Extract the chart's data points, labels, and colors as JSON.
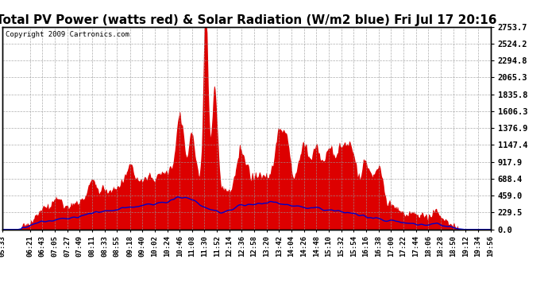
{
  "title": "Total PV Power (watts red) & Solar Radiation (W/m2 blue) Fri Jul 17 20:16",
  "copyright": "Copyright 2009 Cartronics.com",
  "yticks": [
    0.0,
    229.5,
    459.0,
    688.4,
    917.9,
    1147.4,
    1376.9,
    1606.3,
    1835.8,
    2065.3,
    2294.8,
    2524.2,
    2753.7
  ],
  "ymax": 2753.7,
  "ymin": 0.0,
  "xtick_labels": [
    "05:33",
    "06:21",
    "06:43",
    "07:05",
    "07:27",
    "07:49",
    "08:11",
    "08:33",
    "08:55",
    "09:18",
    "09:40",
    "10:02",
    "10:24",
    "10:46",
    "11:08",
    "11:30",
    "11:52",
    "12:14",
    "12:36",
    "12:58",
    "13:20",
    "13:42",
    "14:04",
    "14:26",
    "14:48",
    "15:10",
    "15:32",
    "15:54",
    "16:16",
    "16:38",
    "17:00",
    "17:22",
    "17:44",
    "18:06",
    "18:28",
    "18:50",
    "19:12",
    "19:34",
    "19:56"
  ],
  "pv_color": "#dd0000",
  "solar_color": "#0000cc",
  "bg_color": "#ffffff",
  "plot_bg_color": "#ffffff",
  "grid_color": "#999999",
  "title_fontsize": 11,
  "copyright_fontsize": 6.5,
  "tick_label_fontsize": 6.5,
  "ytick_label_fontsize": 7.5
}
